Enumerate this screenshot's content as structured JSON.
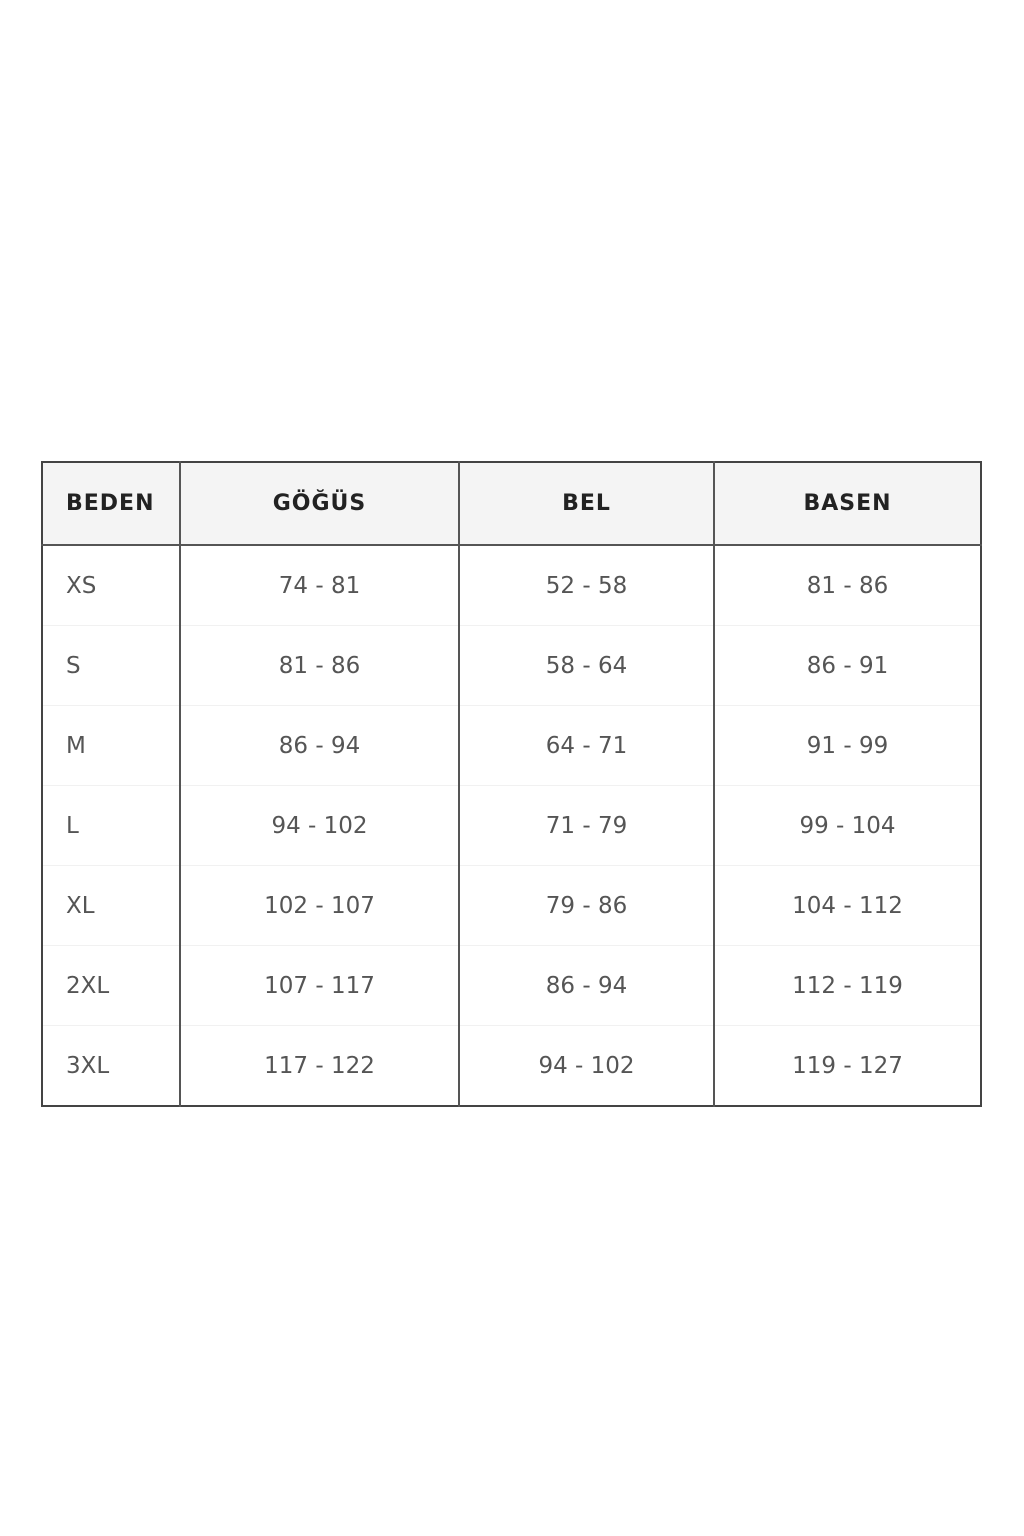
{
  "table": {
    "headers": [
      "BEDEN",
      "GÖĞÜS",
      "BEL",
      "BASEN"
    ],
    "rows": [
      [
        "XS",
        "74 - 81",
        "52 - 58",
        "81 - 86"
      ],
      [
        "S",
        "81 - 86",
        "58 - 64",
        "86 - 91"
      ],
      [
        "M",
        "86 - 94",
        "64 - 71",
        "91 - 99"
      ],
      [
        "L",
        "94 - 102",
        "71 - 79",
        "99 - 104"
      ],
      [
        "XL",
        "102 - 107",
        "79 - 86",
        "104 - 112"
      ],
      [
        "2XL",
        "107 - 117",
        "86 - 94",
        "112 - 119"
      ],
      [
        "3XL",
        "117 - 122",
        "94 - 102",
        "119 - 127"
      ]
    ]
  }
}
